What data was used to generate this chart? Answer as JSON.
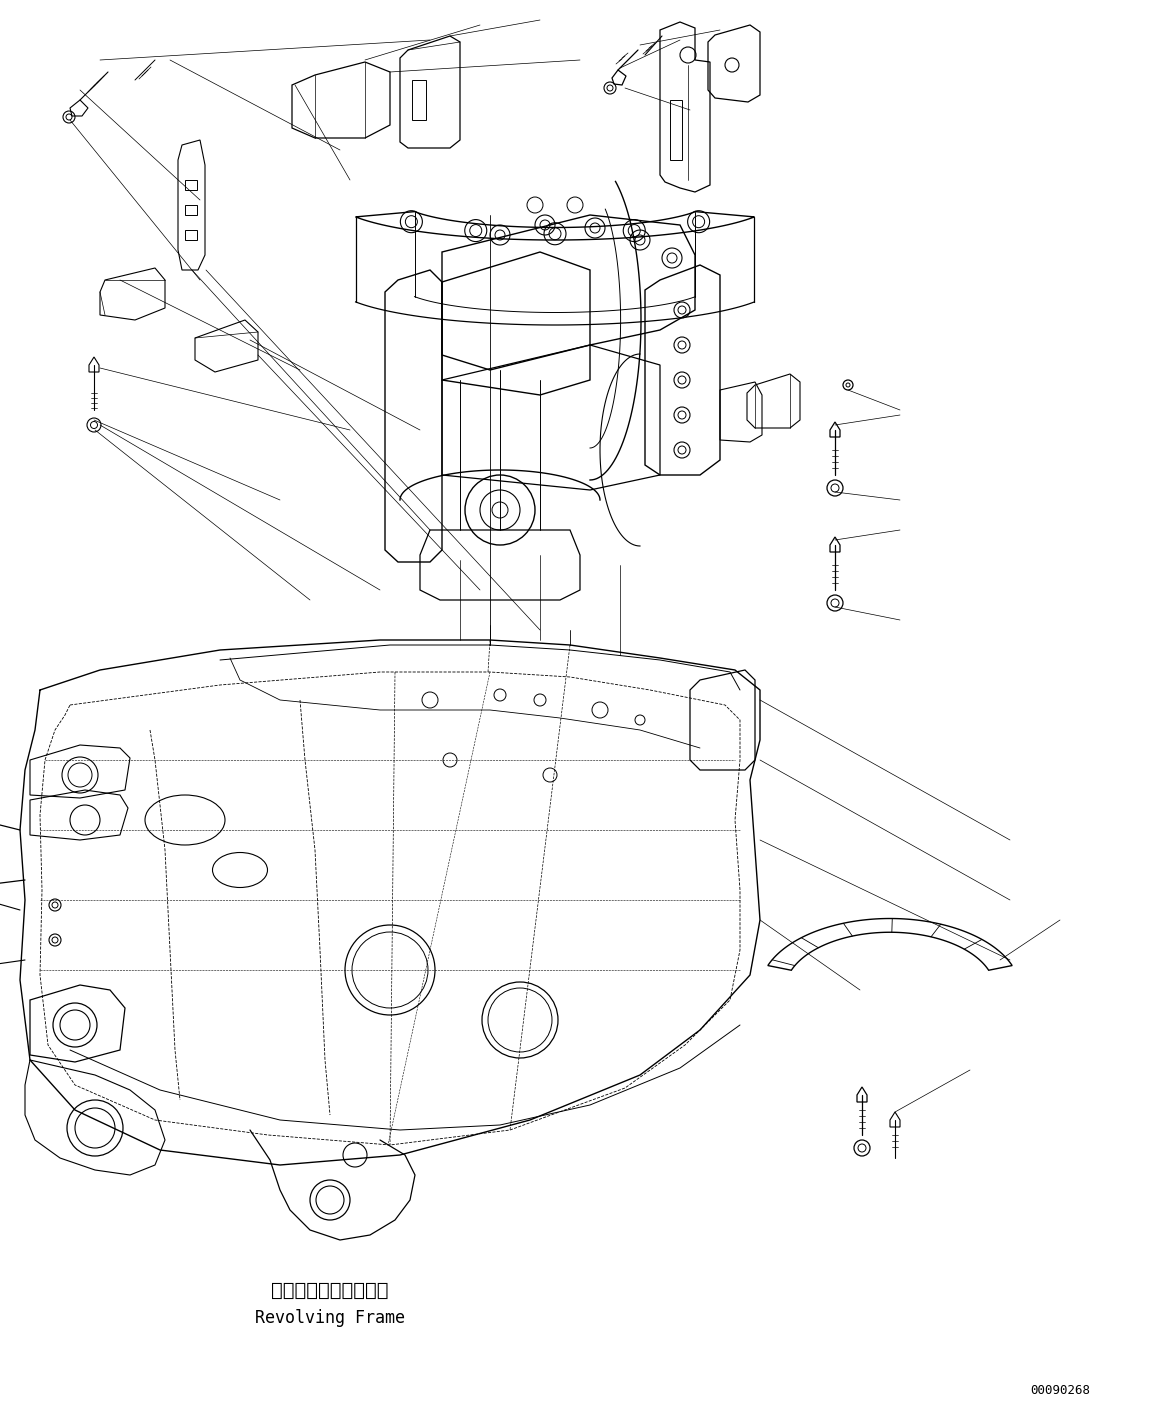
{
  "background_color": "#ffffff",
  "line_color": "#000000",
  "label_japanese": "レボルビングフレーム",
  "label_english": "Revolving Frame",
  "part_number": "00090268",
  "fig_width": 11.63,
  "fig_height": 14.12,
  "dpi": 100
}
